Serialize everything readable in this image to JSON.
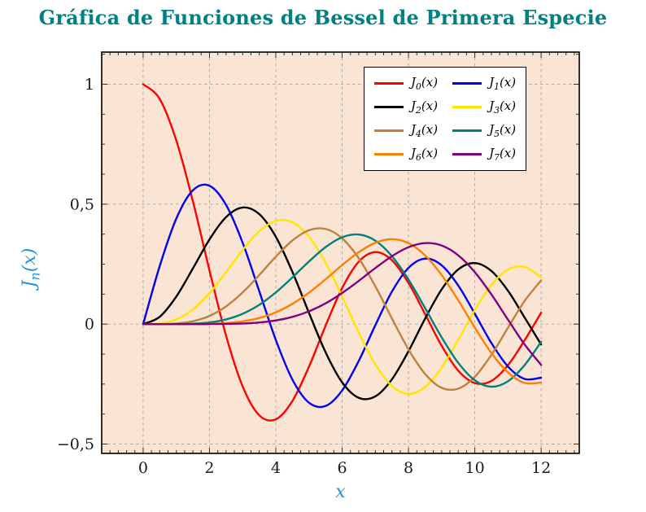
{
  "title": "Gráfica de Funciones de Bessel de Primera Especie",
  "colors": {
    "background": "#ffffff",
    "plot_background": "#fae5d4",
    "grid": "#a6a6a6",
    "axis_border": "#000000",
    "tick_color": "#333333",
    "tick_label": "#1a1a1a",
    "title": "#008080",
    "axis_label": "#2a93d5"
  },
  "chart_data": {
    "type": "line",
    "title": "Gráfica de Funciones de Bessel de Primera Especie",
    "xlabel": "x",
    "ylabel": "J_n(x)",
    "xlim": [
      -1.25,
      13.15
    ],
    "ylim": [
      -0.539,
      1.134
    ],
    "grid": "major, dashed",
    "legend_position": "top-right, 2 columns",
    "x_ticks": {
      "values": [
        0,
        2,
        4,
        6,
        8,
        10,
        12
      ],
      "labels": [
        "0",
        "2",
        "4",
        "6",
        "8",
        "10",
        "12"
      ]
    },
    "y_ticks": {
      "values": [
        1,
        0.5,
        0,
        -0.5
      ],
      "labels": [
        "1",
        "0,5",
        "0",
        "−0,5"
      ]
    },
    "minor_tick_step": {
      "x": 0.25,
      "y": 0.125
    },
    "x": [
      0,
      0.5,
      1,
      1.5,
      2,
      2.5,
      3,
      3.5,
      4,
      4.5,
      5,
      5.5,
      6,
      6.5,
      7,
      7.5,
      8,
      8.5,
      9,
      9.5,
      10,
      10.5,
      11,
      11.5,
      12
    ],
    "series": [
      {
        "name": "J_0(x)",
        "color": "#ff0000",
        "values": [
          1.0,
          0.9385,
          0.7652,
          0.5118,
          0.2239,
          -0.0484,
          -0.2601,
          -0.3801,
          -0.3971,
          -0.3205,
          -0.1776,
          -0.0068,
          0.1506,
          0.2601,
          0.3001,
          0.2663,
          0.1717,
          0.0419,
          -0.0903,
          -0.1939,
          -0.2459,
          -0.2366,
          -0.1712,
          -0.0677,
          0.0477
        ]
      },
      {
        "name": "J_1(x)",
        "color": "#0000ee",
        "values": [
          0,
          0.2423,
          0.4401,
          0.5579,
          0.5767,
          0.4971,
          0.3391,
          0.1374,
          -0.066,
          -0.2311,
          -0.3276,
          -0.3414,
          -0.2767,
          -0.1538,
          -0.0047,
          0.1352,
          0.2346,
          0.2731,
          0.2453,
          0.1613,
          0.0435,
          -0.0789,
          -0.1768,
          -0.2284,
          -0.2234
        ]
      },
      {
        "name": "J_2(x)",
        "color": "#000000",
        "values": [
          0,
          0.0306,
          0.1149,
          0.2321,
          0.3528,
          0.4461,
          0.4861,
          0.4586,
          0.3641,
          0.2178,
          0.0466,
          -0.1173,
          -0.2429,
          -0.3074,
          -0.3014,
          -0.2303,
          -0.113,
          0.0223,
          0.1448,
          0.2279,
          0.2546,
          0.2216,
          0.139,
          0.0279,
          -0.0849
        ]
      },
      {
        "name": "J_3(x)",
        "color": "#ffe600",
        "values": [
          0,
          0.0026,
          0.0196,
          0.061,
          0.1289,
          0.2166,
          0.3091,
          0.3868,
          0.4302,
          0.4247,
          0.3648,
          0.2561,
          0.1148,
          -0.0353,
          -0.1676,
          -0.2581,
          -0.2911,
          -0.2626,
          -0.1809,
          -0.0653,
          0.0584,
          0.1633,
          0.2273,
          0.2381,
          0.1951
        ]
      },
      {
        "name": "J_4(x)",
        "color": "#bf8040",
        "values": [
          0,
          0.0002,
          0.0025,
          0.0118,
          0.034,
          0.0738,
          0.132,
          0.2044,
          0.2811,
          0.3484,
          0.3912,
          0.3967,
          0.3576,
          0.2748,
          0.1578,
          0.0238,
          -0.1054,
          -0.2077,
          -0.2655,
          -0.2691,
          -0.2196,
          -0.1283,
          -0.015,
          0.0963,
          0.1825
        ]
      },
      {
        "name": "J_5(x)",
        "color": "#008080",
        "values": [
          0,
          0.0,
          0.0002,
          0.0018,
          0.007,
          0.0195,
          0.043,
          0.0804,
          0.1321,
          0.1947,
          0.2611,
          0.3209,
          0.3621,
          0.3736,
          0.3479,
          0.2833,
          0.1858,
          0.0671,
          -0.055,
          -0.1613,
          -0.2341,
          -0.2611,
          -0.2383,
          -0.1711,
          -0.0735
        ]
      },
      {
        "name": "J_6(x)",
        "color": "#ff8000",
        "values": [
          0,
          0.0,
          0.0,
          0.0002,
          0.0012,
          0.0042,
          0.0114,
          0.0254,
          0.0491,
          0.0843,
          0.131,
          0.1868,
          0.2458,
          0.2999,
          0.3392,
          0.3541,
          0.3376,
          0.2867,
          0.2043,
          0.0993,
          -0.0145,
          -0.1203,
          -0.2016,
          -0.2451,
          -0.2437
        ]
      },
      {
        "name": "J_7(x)",
        "color": "#800080",
        "values": [
          0,
          0.0,
          0.0,
          0.0,
          0.0002,
          0.0008,
          0.0025,
          0.0067,
          0.0152,
          0.03,
          0.0534,
          0.0866,
          0.1296,
          0.1801,
          0.2336,
          0.2832,
          0.3206,
          0.3376,
          0.3275,
          0.2868,
          0.2167,
          0.1237,
          0.0184,
          -0.0846,
          -0.1703
        ]
      }
    ]
  }
}
